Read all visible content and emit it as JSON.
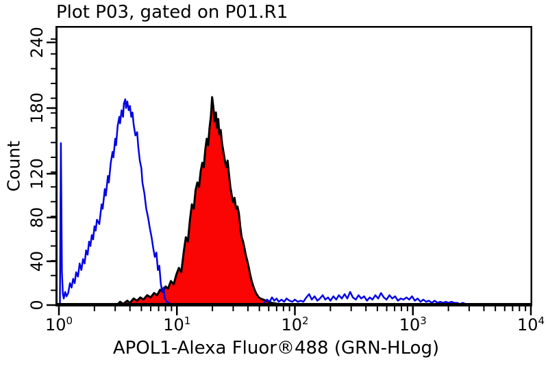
{
  "window": {
    "background": "#ffffff"
  },
  "chart_data": {
    "type": "area",
    "title": "Plot P03, gated on P01.R1",
    "xlabel": "APOL1-Alexa Fluor®488 (GRN-HLog)",
    "ylabel": "Count",
    "x_scale": "log",
    "xlim": [
      1,
      10000
    ],
    "ylim": [
      0,
      255
    ],
    "grid": false,
    "legend": "none",
    "x_major_tick_exponents": [
      0,
      1,
      2,
      3,
      4
    ],
    "y_major_ticks": [
      0,
      40,
      80,
      120,
      180,
      240
    ],
    "y_minor_step": 13.5,
    "colors": {
      "axis": "#000000",
      "control_histogram": "#0202e6",
      "stained_outline": "#000000",
      "stained_fill": "#fb0404"
    },
    "series": [
      {
        "name": "APOL1-stained filled histogram (red, black outline)",
        "style": "area",
        "stroke": "#000000",
        "stroke_width": 3,
        "fill": "#fb0404",
        "peak": {
          "x": 20,
          "count": 190
        },
        "segments": [
          [
            [
              3.1,
              0
            ],
            [
              3.3,
              3
            ],
            [
              3.5,
              1
            ],
            [
              3.8,
              4
            ],
            [
              4.0,
              2
            ],
            [
              4.3,
              6
            ],
            [
              4.6,
              4
            ],
            [
              4.9,
              7
            ],
            [
              5.2,
              5
            ],
            [
              5.6,
              9
            ],
            [
              6.0,
              7
            ],
            [
              6.4,
              11
            ],
            [
              6.8,
              9
            ],
            [
              7.2,
              14
            ],
            [
              7.6,
              12
            ],
            [
              8.0,
              17
            ],
            [
              8.4,
              15
            ],
            [
              8.9,
              22
            ],
            [
              9.4,
              19
            ],
            [
              9.9,
              28
            ],
            [
              10.4,
              34
            ],
            [
              10.9,
              30
            ],
            [
              11.4,
              48
            ],
            [
              11.9,
              62
            ],
            [
              12.4,
              58
            ],
            [
              12.9,
              78
            ],
            [
              13.4,
              92
            ],
            [
              13.9,
              88
            ],
            [
              14.4,
              105
            ],
            [
              14.9,
              112
            ],
            [
              15.4,
              108
            ],
            [
              15.9,
              122
            ],
            [
              16.4,
              130
            ],
            [
              16.9,
              126
            ],
            [
              17.4,
              142
            ],
            [
              17.9,
              152
            ],
            [
              18.4,
              146
            ],
            [
              18.9,
              162
            ],
            [
              19.4,
              172
            ],
            [
              19.9,
              190
            ],
            [
              20.4,
              180
            ],
            [
              20.9,
              168
            ],
            [
              21.4,
              176
            ],
            [
              21.9,
              162
            ],
            [
              22.4,
              170
            ],
            [
              22.9,
              156
            ],
            [
              23.5,
              160
            ],
            [
              24.1,
              148
            ],
            [
              24.8,
              140
            ],
            [
              25.5,
              132
            ],
            [
              26.2,
              126
            ],
            [
              26.9,
              132
            ],
            [
              27.7,
              118
            ],
            [
              28.4,
              108
            ],
            [
              29.2,
              100
            ],
            [
              30.0,
              94
            ],
            [
              30.8,
              98
            ],
            [
              31.7,
              88
            ],
            [
              32.6,
              90
            ],
            [
              33.5,
              84
            ],
            [
              34.4,
              72
            ],
            [
              35.4,
              62
            ],
            [
              36.4,
              58
            ],
            [
              37.4,
              52
            ],
            [
              38.5,
              45
            ],
            [
              39.6,
              40
            ],
            [
              40.7,
              34
            ],
            [
              41.8,
              28
            ],
            [
              43.0,
              22
            ],
            [
              44.2,
              18
            ],
            [
              45.5,
              14
            ],
            [
              46.8,
              11
            ],
            [
              48.1,
              9
            ],
            [
              49.5,
              7
            ],
            [
              51,
              6
            ],
            [
              54,
              5
            ],
            [
              57,
              4
            ],
            [
              60,
              3
            ],
            [
              64,
              2
            ],
            [
              68,
              1.5
            ],
            [
              72,
              1
            ],
            [
              76,
              0.5
            ],
            [
              80,
              0
            ]
          ]
        ]
      },
      {
        "name": "secondary-antibody control open histogram (blue)",
        "style": "line",
        "stroke": "#0202e6",
        "stroke_width": 2.5,
        "fill": "none",
        "peak": {
          "x": 3.6,
          "count": 188
        },
        "segments": [
          [
            [
              1.02,
              2
            ],
            [
              1.04,
              148
            ],
            [
              1.06,
              30
            ],
            [
              1.08,
              10
            ],
            [
              1.1,
              6
            ],
            [
              1.13,
              12
            ],
            [
              1.16,
              8
            ],
            [
              1.2,
              11
            ],
            [
              1.24,
              20
            ],
            [
              1.28,
              16
            ],
            [
              1.32,
              24
            ],
            [
              1.36,
              20
            ],
            [
              1.4,
              30
            ],
            [
              1.45,
              26
            ],
            [
              1.5,
              38
            ],
            [
              1.55,
              32
            ],
            [
              1.6,
              42
            ],
            [
              1.65,
              38
            ],
            [
              1.7,
              50
            ],
            [
              1.75,
              46
            ],
            [
              1.8,
              58
            ],
            [
              1.85,
              54
            ],
            [
              1.9,
              64
            ],
            [
              1.95,
              60
            ],
            [
              2.0,
              72
            ],
            [
              2.05,
              68
            ],
            [
              2.1,
              78
            ],
            [
              2.2,
              74
            ],
            [
              2.3,
              92
            ],
            [
              2.35,
              88
            ],
            [
              2.45,
              106
            ],
            [
              2.5,
              100
            ],
            [
              2.6,
              118
            ],
            [
              2.65,
              112
            ],
            [
              2.75,
              130
            ],
            [
              2.85,
              140
            ],
            [
              2.9,
              135
            ],
            [
              3.0,
              152
            ],
            [
              3.05,
              146
            ],
            [
              3.15,
              164
            ],
            [
              3.25,
              172
            ],
            [
              3.3,
              166
            ],
            [
              3.4,
              178
            ],
            [
              3.5,
              172
            ],
            [
              3.55,
              184
            ],
            [
              3.65,
              188
            ],
            [
              3.7,
              180
            ],
            [
              3.8,
              186
            ],
            [
              3.9,
              178
            ],
            [
              4.0,
              182
            ],
            [
              4.1,
              172
            ],
            [
              4.2,
              176
            ],
            [
              4.3,
              165
            ],
            [
              4.45,
              155
            ],
            [
              4.6,
              158
            ],
            [
              4.7,
              145
            ],
            [
              4.85,
              132
            ],
            [
              5.0,
              125
            ],
            [
              5.1,
              112
            ],
            [
              5.3,
              102
            ],
            [
              5.5,
              88
            ],
            [
              5.7,
              80
            ],
            [
              5.9,
              70
            ],
            [
              6.1,
              62
            ],
            [
              6.3,
              52
            ],
            [
              6.5,
              44
            ],
            [
              6.7,
              48
            ],
            [
              6.9,
              32
            ],
            [
              7.1,
              36
            ],
            [
              7.3,
              20
            ],
            [
              7.5,
              12
            ],
            [
              7.7,
              16
            ],
            [
              7.9,
              6
            ],
            [
              8.2,
              3
            ],
            [
              8.6,
              2
            ]
          ],
          [
            [
              55,
              2
            ],
            [
              58,
              5
            ],
            [
              61,
              3
            ],
            [
              64,
              7
            ],
            [
              67,
              4
            ],
            [
              70,
              6
            ],
            [
              73,
              3
            ],
            [
              77,
              5
            ],
            [
              81,
              3
            ],
            [
              85,
              6
            ],
            [
              90,
              4
            ],
            [
              95,
              3
            ],
            [
              100,
              5
            ],
            [
              106,
              3
            ],
            [
              112,
              4
            ],
            [
              118,
              3
            ],
            [
              125,
              7
            ],
            [
              132,
              10
            ],
            [
              139,
              5
            ],
            [
              147,
              8
            ],
            [
              155,
              4
            ],
            [
              163,
              6
            ],
            [
              172,
              9
            ],
            [
              181,
              5
            ],
            [
              191,
              7
            ],
            [
              200,
              4
            ],
            [
              212,
              8
            ],
            [
              224,
              5
            ],
            [
              236,
              9
            ],
            [
              250,
              6
            ],
            [
              264,
              10
            ],
            [
              278,
              6
            ],
            [
              294,
              12
            ],
            [
              310,
              7
            ],
            [
              328,
              5
            ],
            [
              346,
              9
            ],
            [
              365,
              6
            ],
            [
              386,
              8
            ],
            [
              408,
              4
            ],
            [
              431,
              7
            ],
            [
              455,
              5
            ],
            [
              481,
              9
            ],
            [
              508,
              6
            ],
            [
              537,
              11
            ],
            [
              567,
              7
            ],
            [
              599,
              5
            ],
            [
              633,
              9
            ],
            [
              669,
              6
            ],
            [
              707,
              8
            ],
            [
              747,
              4
            ],
            [
              789,
              6
            ],
            [
              834,
              5
            ],
            [
              881,
              7
            ],
            [
              931,
              5
            ],
            [
              983,
              8
            ],
            [
              1039,
              4
            ],
            [
              1098,
              6
            ],
            [
              1160,
              3
            ],
            [
              1226,
              5
            ],
            [
              1295,
              3
            ],
            [
              1368,
              4
            ],
            [
              1446,
              2
            ],
            [
              1527,
              4
            ],
            [
              1614,
              2
            ],
            [
              1705,
              3
            ],
            [
              1802,
              2
            ],
            [
              1904,
              3
            ],
            [
              2011,
              2
            ],
            [
              2125,
              3
            ],
            [
              2245,
              2
            ],
            [
              2372,
              2
            ],
            [
              2506,
              1
            ],
            [
              2648,
              2
            ],
            [
              2798,
              1
            ]
          ]
        ]
      }
    ]
  }
}
